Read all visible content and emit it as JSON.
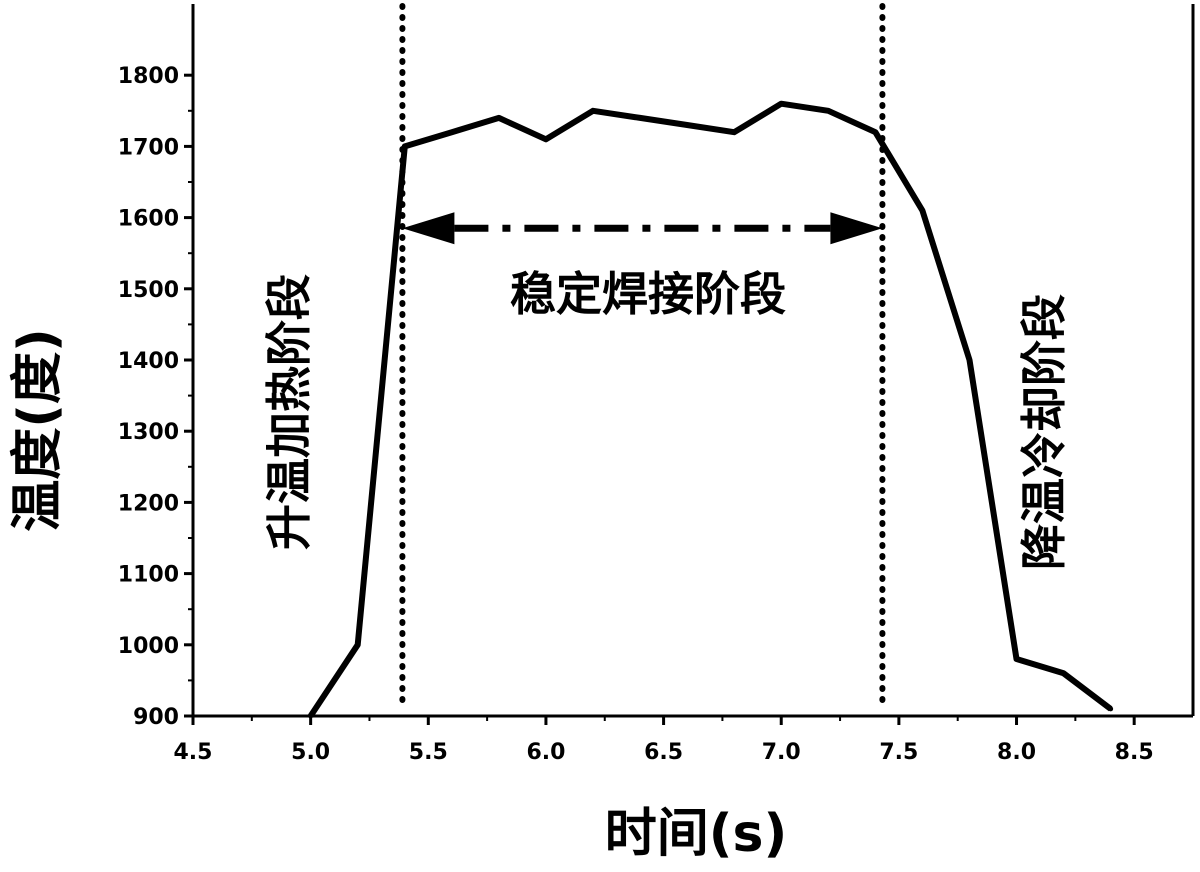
{
  "chart_data": {
    "type": "line",
    "xlabel": "时间(s)",
    "ylabel": "温度(度)",
    "xlim": [
      4.5,
      8.75
    ],
    "ylim": [
      900,
      1900
    ],
    "x_ticks": [
      4.5,
      5.0,
      5.5,
      6.0,
      6.5,
      7.0,
      7.5,
      8.0,
      8.5
    ],
    "x_tick_labels": [
      "4.5",
      "5.0",
      "5.5",
      "6.0",
      "6.5",
      "7.0",
      "7.5",
      "8.0",
      "8.5"
    ],
    "y_ticks": [
      900,
      1000,
      1100,
      1200,
      1300,
      1400,
      1500,
      1600,
      1700,
      1800
    ],
    "y_tick_labels": [
      "900",
      "1000",
      "1100",
      "1200",
      "1300",
      "1400",
      "1500",
      "1600",
      "1700",
      "1800"
    ],
    "grid": false,
    "series": [
      {
        "x": [
          5.0,
          5.2,
          5.4,
          5.6,
          5.8,
          6.0,
          6.2,
          6.4,
          6.6,
          6.8,
          7.0,
          7.2,
          7.4,
          7.6,
          7.8,
          8.0,
          8.2,
          8.4
        ],
        "y": [
          900,
          1000,
          1700,
          1720,
          1740,
          1710,
          1750,
          1740,
          1730,
          1720,
          1760,
          1750,
          1720,
          1610,
          1400,
          980,
          960,
          910
        ]
      }
    ],
    "stage_boundaries_x": [
      5.39,
      7.43
    ],
    "annotations": {
      "heating": "升温加热阶段",
      "stable": "稳定焊接阶段",
      "cooling": "降温冷却阶段"
    },
    "stable_arrow_y": 1585
  }
}
